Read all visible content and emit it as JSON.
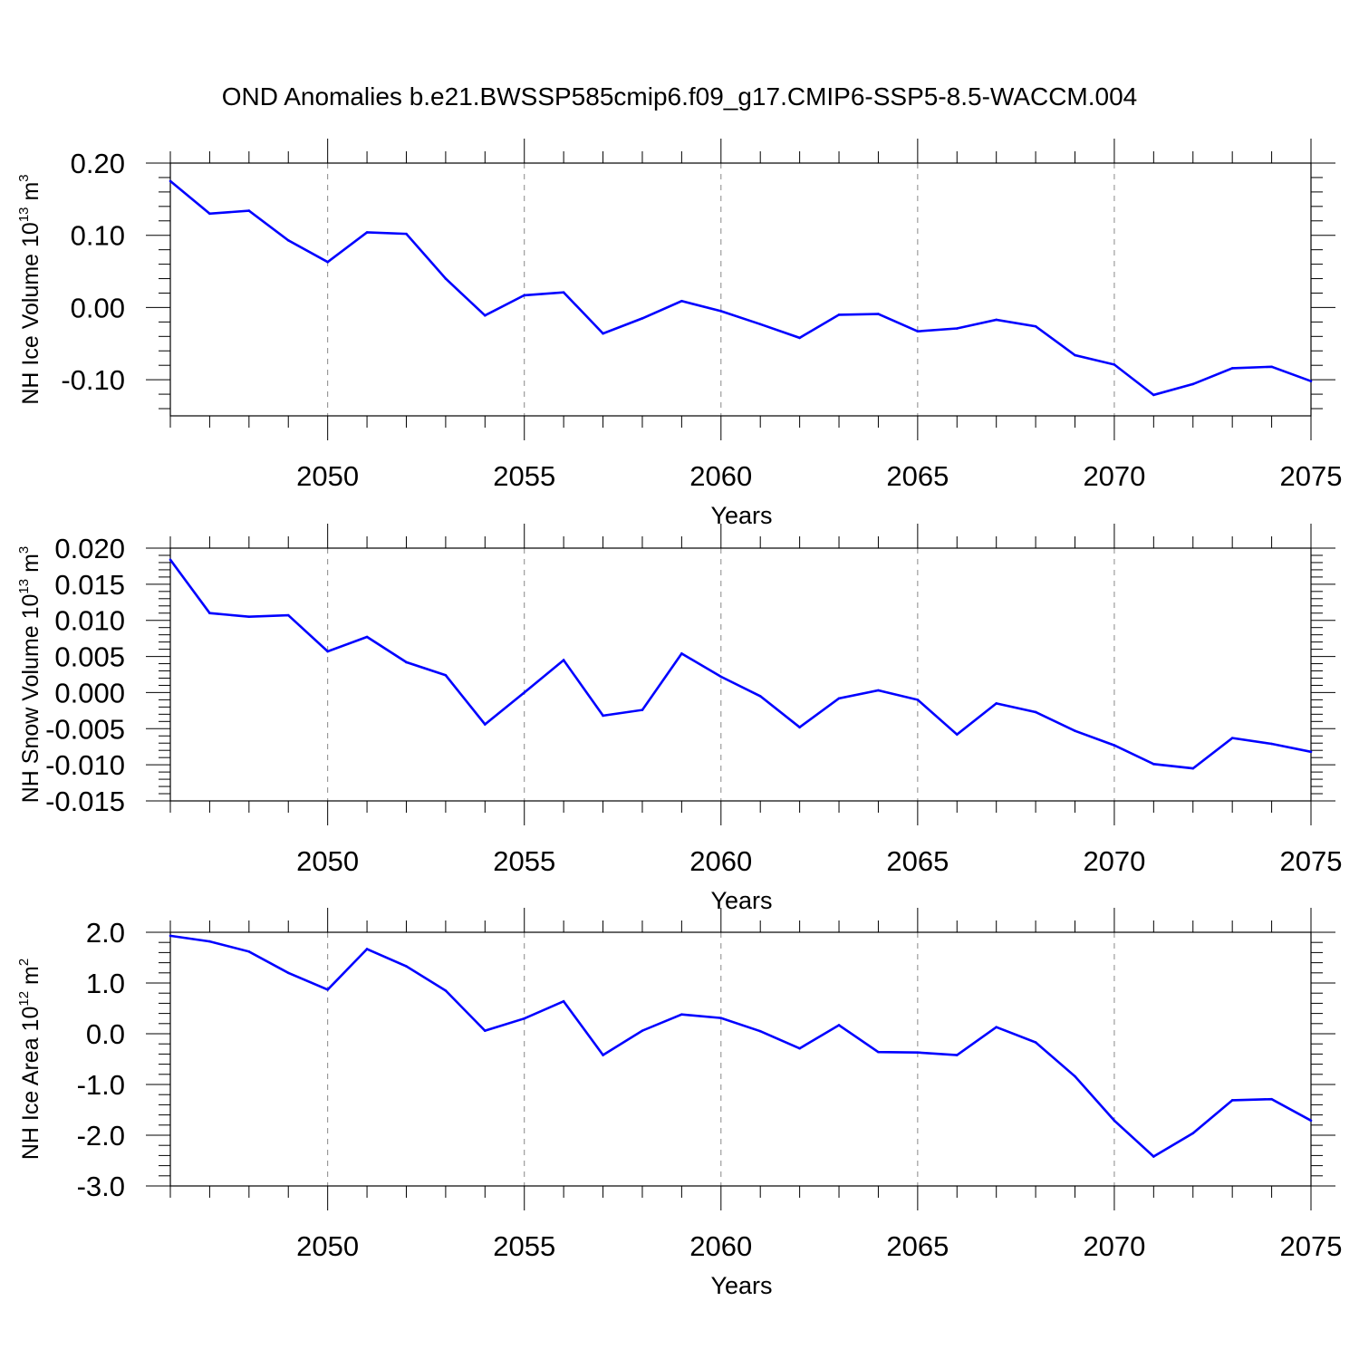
{
  "title": "OND Anomalies b.e21.BWSSP585cmip6.f09_g17.CMIP6-SSP5-8.5-WACCM.004",
  "colors": {
    "line": "#0000ff",
    "axis": "#000000",
    "grid": "#888888",
    "background": "#ffffff"
  },
  "chart_data": [
    {
      "type": "line",
      "title": "OND Anomalies b.e21.BWSSP585cmip6.f09_g17.CMIP6-SSP5-8.5-WACCM.004",
      "ylabel": {
        "prefix": "NH Ice Volume 10",
        "exponent": "13",
        "unit": " m",
        "unit_exponent": "3"
      },
      "xlabel": "Years",
      "xlim": [
        2046,
        2075
      ],
      "ylim": [
        -0.15,
        0.2
      ],
      "yticks": [
        0.2,
        0.1,
        0.0,
        -0.1
      ],
      "ytick_labels": [
        "0.20",
        "0.10",
        "0.00",
        "-0.10"
      ],
      "xticks": [
        2050,
        2055,
        2060,
        2065,
        2070,
        2075
      ],
      "xtick_labels": [
        "2050",
        "2055",
        "2060",
        "2065",
        "2070",
        "2075"
      ],
      "grid": "vertical dashed at major x ticks",
      "x": [
        2046,
        2047,
        2048,
        2049,
        2050,
        2051,
        2052,
        2053,
        2054,
        2055,
        2056,
        2057,
        2058,
        2059,
        2060,
        2061,
        2062,
        2063,
        2064,
        2065,
        2066,
        2067,
        2068,
        2069,
        2070,
        2071,
        2072,
        2073,
        2074,
        2075
      ],
      "values": [
        0.175,
        0.13,
        0.134,
        0.093,
        0.063,
        0.104,
        0.102,
        0.04,
        -0.011,
        0.017,
        0.021,
        -0.036,
        -0.015,
        0.009,
        -0.005,
        -0.023,
        -0.042,
        -0.01,
        -0.009,
        -0.033,
        -0.029,
        -0.017,
        -0.026,
        -0.066,
        -0.079,
        -0.121,
        -0.106,
        -0.084,
        -0.082,
        -0.102
      ]
    },
    {
      "type": "line",
      "ylabel": {
        "prefix": "NH Snow Volume 10",
        "exponent": "13",
        "unit": " m",
        "unit_exponent": "3"
      },
      "xlabel": "Years",
      "xlim": [
        2046,
        2075
      ],
      "ylim": [
        -0.015,
        0.02
      ],
      "yticks": [
        0.02,
        0.015,
        0.01,
        0.005,
        0.0,
        -0.005,
        -0.01,
        -0.015
      ],
      "ytick_labels": [
        "0.020",
        "0.015",
        "0.010",
        "0.005",
        "0.000",
        "-0.005",
        "-0.010",
        "-0.015"
      ],
      "xticks": [
        2050,
        2055,
        2060,
        2065,
        2070,
        2075
      ],
      "xtick_labels": [
        "2050",
        "2055",
        "2060",
        "2065",
        "2070",
        "2075"
      ],
      "grid": "vertical dashed at major x ticks",
      "x": [
        2046,
        2047,
        2048,
        2049,
        2050,
        2051,
        2052,
        2053,
        2054,
        2055,
        2056,
        2057,
        2058,
        2059,
        2060,
        2061,
        2062,
        2063,
        2064,
        2065,
        2066,
        2067,
        2068,
        2069,
        2070,
        2071,
        2072,
        2073,
        2074,
        2075
      ],
      "values": [
        0.0184,
        0.011,
        0.0105,
        0.0107,
        0.0057,
        0.0077,
        0.0042,
        0.0024,
        -0.0044,
        0.0,
        0.0045,
        -0.0032,
        -0.0024,
        0.0054,
        0.0022,
        -0.0005,
        -0.0048,
        -0.0008,
        0.0003,
        -0.001,
        -0.0058,
        -0.0015,
        -0.0027,
        -0.0053,
        -0.0073,
        -0.0099,
        -0.0105,
        -0.0063,
        -0.0071,
        -0.0082
      ]
    },
    {
      "type": "line",
      "ylabel": {
        "prefix": "NH Ice Area 10",
        "exponent": "12",
        "unit": " m",
        "unit_exponent": "2"
      },
      "xlabel": "Years",
      "xlim": [
        2046,
        2075
      ],
      "ylim": [
        -3.0,
        2.0
      ],
      "yticks": [
        2.0,
        1.0,
        0.0,
        -1.0,
        -2.0,
        -3.0
      ],
      "ytick_labels": [
        "2.0",
        "1.0",
        "0.0",
        "-1.0",
        "-2.0",
        "-3.0"
      ],
      "xticks": [
        2050,
        2055,
        2060,
        2065,
        2070,
        2075
      ],
      "xtick_labels": [
        "2050",
        "2055",
        "2060",
        "2065",
        "2070",
        "2075"
      ],
      "grid": "vertical dashed at major x ticks",
      "x": [
        2046,
        2047,
        2048,
        2049,
        2050,
        2051,
        2052,
        2053,
        2054,
        2055,
        2056,
        2057,
        2058,
        2059,
        2060,
        2061,
        2062,
        2063,
        2064,
        2065,
        2066,
        2067,
        2068,
        2069,
        2070,
        2071,
        2072,
        2073,
        2074,
        2075
      ],
      "values": [
        1.93,
        1.82,
        1.62,
        1.2,
        0.87,
        1.67,
        1.33,
        0.85,
        0.06,
        0.3,
        0.64,
        -0.42,
        0.06,
        0.38,
        0.31,
        0.05,
        -0.29,
        0.17,
        -0.36,
        -0.37,
        -0.42,
        0.13,
        -0.17,
        -0.84,
        -1.71,
        -2.42,
        -1.96,
        -1.31,
        -1.29,
        -1.71
      ]
    }
  ]
}
